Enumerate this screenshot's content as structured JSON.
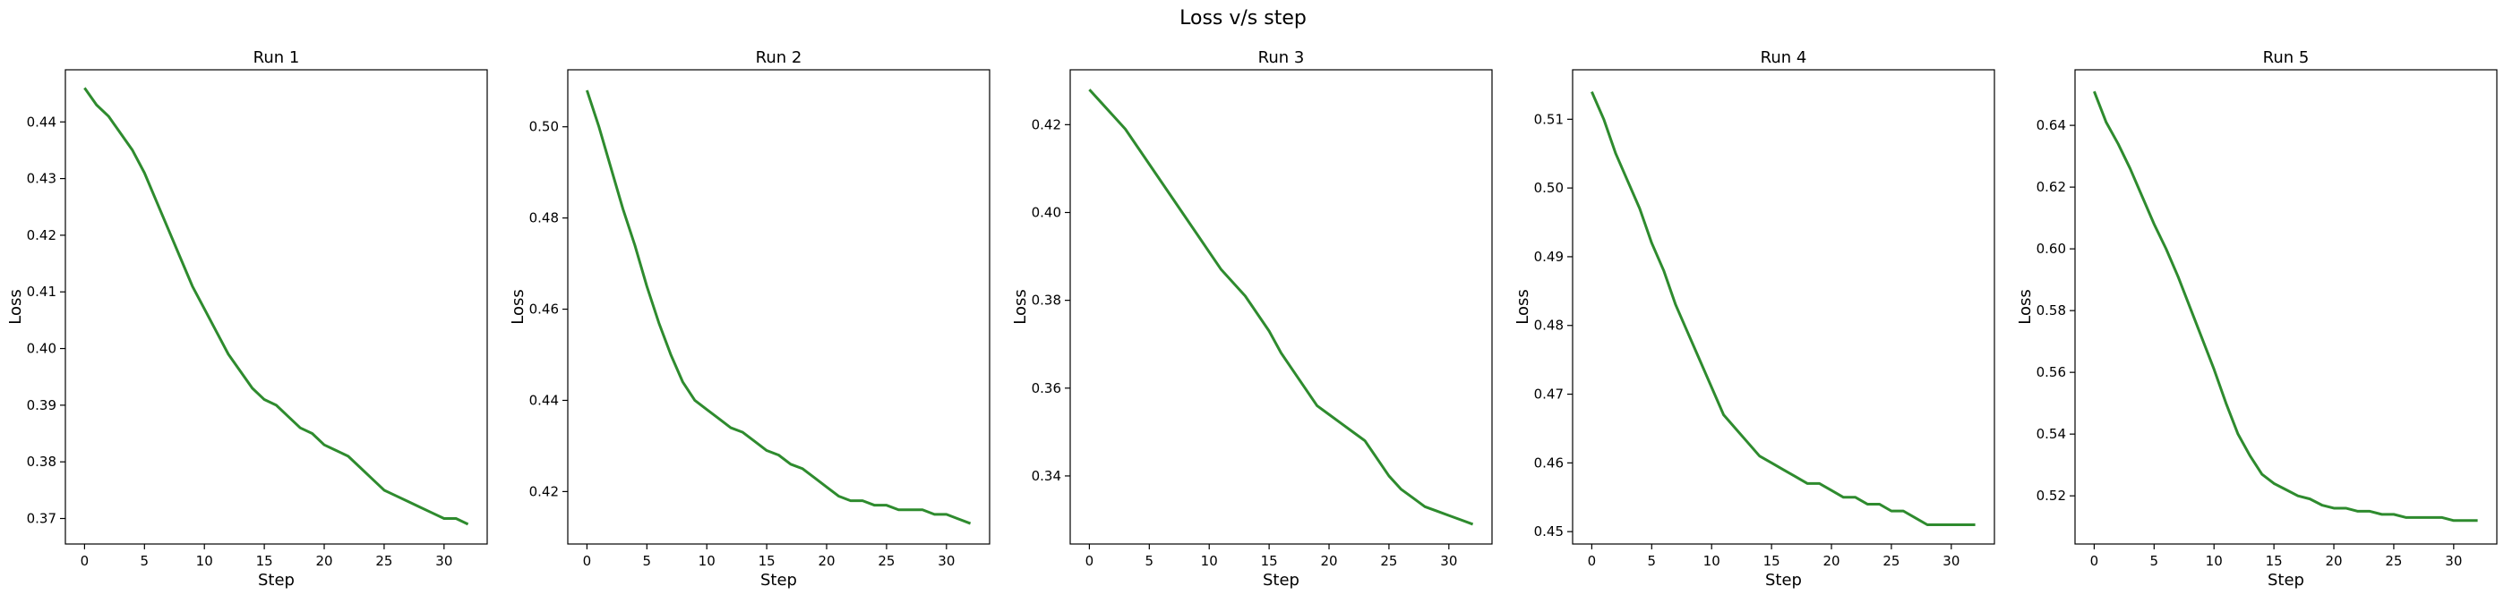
{
  "figure_title": "Loss v/s step",
  "line_color": "#2e8b2e",
  "chart_data": [
    {
      "type": "line",
      "title": "Run 1",
      "xlabel": "Step",
      "ylabel": "Loss",
      "xlim": [
        -1.6,
        33.6
      ],
      "ylim": [
        0.3655,
        0.4492
      ],
      "xticks": [
        0,
        5,
        10,
        15,
        20,
        25,
        30
      ],
      "yticks": [
        0.37,
        0.38,
        0.39,
        0.4,
        0.41,
        0.42,
        0.43,
        0.44
      ],
      "ytick_labels": [
        "0.37",
        "0.38",
        "0.39",
        "0.40",
        "0.41",
        "0.42",
        "0.43",
        "0.44"
      ],
      "x": [
        0,
        1,
        2,
        3,
        4,
        5,
        6,
        7,
        8,
        9,
        10,
        11,
        12,
        13,
        14,
        15,
        16,
        17,
        18,
        19,
        20,
        21,
        22,
        23,
        24,
        25,
        26,
        27,
        28,
        29,
        30,
        31,
        32
      ],
      "y": [
        0.446,
        0.443,
        0.441,
        0.438,
        0.435,
        0.431,
        0.426,
        0.421,
        0.416,
        0.411,
        0.407,
        0.403,
        0.399,
        0.396,
        0.393,
        0.391,
        0.39,
        0.388,
        0.386,
        0.385,
        0.383,
        0.382,
        0.381,
        0.379,
        0.377,
        0.375,
        0.374,
        0.373,
        0.372,
        0.371,
        0.37,
        0.37,
        0.369
      ]
    },
    {
      "type": "line",
      "title": "Run 2",
      "xlabel": "Step",
      "ylabel": "Loss",
      "xlim": [
        -1.6,
        33.6
      ],
      "ylim": [
        0.4085,
        0.5125
      ],
      "xticks": [
        0,
        5,
        10,
        15,
        20,
        25,
        30
      ],
      "yticks": [
        0.42,
        0.44,
        0.46,
        0.48,
        0.5
      ],
      "ytick_labels": [
        "0.42",
        "0.44",
        "0.46",
        "0.48",
        "0.50"
      ],
      "x": [
        0,
        1,
        2,
        3,
        4,
        5,
        6,
        7,
        8,
        9,
        10,
        11,
        12,
        13,
        14,
        15,
        16,
        17,
        18,
        19,
        20,
        21,
        22,
        23,
        24,
        25,
        26,
        27,
        28,
        29,
        30,
        31,
        32
      ],
      "y": [
        0.508,
        0.5,
        0.491,
        0.482,
        0.474,
        0.465,
        0.457,
        0.45,
        0.444,
        0.44,
        0.438,
        0.436,
        0.434,
        0.433,
        0.431,
        0.429,
        0.428,
        0.426,
        0.425,
        0.423,
        0.421,
        0.419,
        0.418,
        0.418,
        0.417,
        0.417,
        0.416,
        0.416,
        0.416,
        0.415,
        0.415,
        0.414,
        0.413
      ]
    },
    {
      "type": "line",
      "title": "Run 3",
      "xlabel": "Step",
      "ylabel": "Loss",
      "xlim": [
        -1.6,
        33.6
      ],
      "ylim": [
        0.3245,
        0.4325
      ],
      "xticks": [
        0,
        5,
        10,
        15,
        20,
        25,
        30
      ],
      "yticks": [
        0.34,
        0.36,
        0.38,
        0.4,
        0.42
      ],
      "ytick_labels": [
        "0.34",
        "0.36",
        "0.38",
        "0.40",
        "0.42"
      ],
      "x": [
        0,
        1,
        2,
        3,
        4,
        5,
        6,
        7,
        8,
        9,
        10,
        11,
        12,
        13,
        14,
        15,
        16,
        17,
        18,
        19,
        20,
        21,
        22,
        23,
        24,
        25,
        26,
        27,
        28,
        29,
        30,
        31,
        32
      ],
      "y": [
        0.428,
        0.425,
        0.422,
        0.419,
        0.415,
        0.411,
        0.407,
        0.403,
        0.399,
        0.395,
        0.391,
        0.387,
        0.384,
        0.381,
        0.377,
        0.373,
        0.368,
        0.364,
        0.36,
        0.356,
        0.354,
        0.352,
        0.35,
        0.348,
        0.344,
        0.34,
        0.337,
        0.335,
        0.333,
        0.332,
        0.331,
        0.33,
        0.329
      ]
    },
    {
      "type": "line",
      "title": "Run 4",
      "xlabel": "Step",
      "ylabel": "Loss",
      "xlim": [
        -1.6,
        33.6
      ],
      "ylim": [
        0.4482,
        0.5172
      ],
      "xticks": [
        0,
        5,
        10,
        15,
        20,
        25,
        30
      ],
      "yticks": [
        0.45,
        0.46,
        0.47,
        0.48,
        0.49,
        0.5,
        0.51
      ],
      "ytick_labels": [
        "0.45",
        "0.46",
        "0.47",
        "0.48",
        "0.49",
        "0.50",
        "0.51"
      ],
      "x": [
        0,
        1,
        2,
        3,
        4,
        5,
        6,
        7,
        8,
        9,
        10,
        11,
        12,
        13,
        14,
        15,
        16,
        17,
        18,
        19,
        20,
        21,
        22,
        23,
        24,
        25,
        26,
        27,
        28,
        29,
        30,
        31,
        32
      ],
      "y": [
        0.514,
        0.51,
        0.505,
        0.501,
        0.497,
        0.492,
        0.488,
        0.483,
        0.479,
        0.475,
        0.471,
        0.467,
        0.465,
        0.463,
        0.461,
        0.46,
        0.459,
        0.458,
        0.457,
        0.457,
        0.456,
        0.455,
        0.455,
        0.454,
        0.454,
        0.453,
        0.453,
        0.452,
        0.451,
        0.451,
        0.451,
        0.451,
        0.451
      ]
    },
    {
      "type": "line",
      "title": "Run 5",
      "xlabel": "Step",
      "ylabel": "Loss",
      "xlim": [
        -1.6,
        33.6
      ],
      "ylim": [
        0.5044,
        0.658
      ],
      "xticks": [
        0,
        5,
        10,
        15,
        20,
        25,
        30
      ],
      "yticks": [
        0.52,
        0.54,
        0.56,
        0.58,
        0.6,
        0.62,
        0.64
      ],
      "ytick_labels": [
        "0.52",
        "0.54",
        "0.56",
        "0.58",
        "0.60",
        "0.62",
        "0.64"
      ],
      "x": [
        0,
        1,
        2,
        3,
        4,
        5,
        6,
        7,
        8,
        9,
        10,
        11,
        12,
        13,
        14,
        15,
        16,
        17,
        18,
        19,
        20,
        21,
        22,
        23,
        24,
        25,
        26,
        27,
        28,
        29,
        30,
        31,
        32
      ],
      "y": [
        0.651,
        0.641,
        0.634,
        0.626,
        0.617,
        0.608,
        0.6,
        0.591,
        0.581,
        0.571,
        0.561,
        0.55,
        0.54,
        0.533,
        0.527,
        0.524,
        0.522,
        0.52,
        0.519,
        0.517,
        0.516,
        0.516,
        0.515,
        0.515,
        0.514,
        0.514,
        0.513,
        0.513,
        0.513,
        0.513,
        0.512,
        0.512,
        0.512
      ]
    }
  ]
}
